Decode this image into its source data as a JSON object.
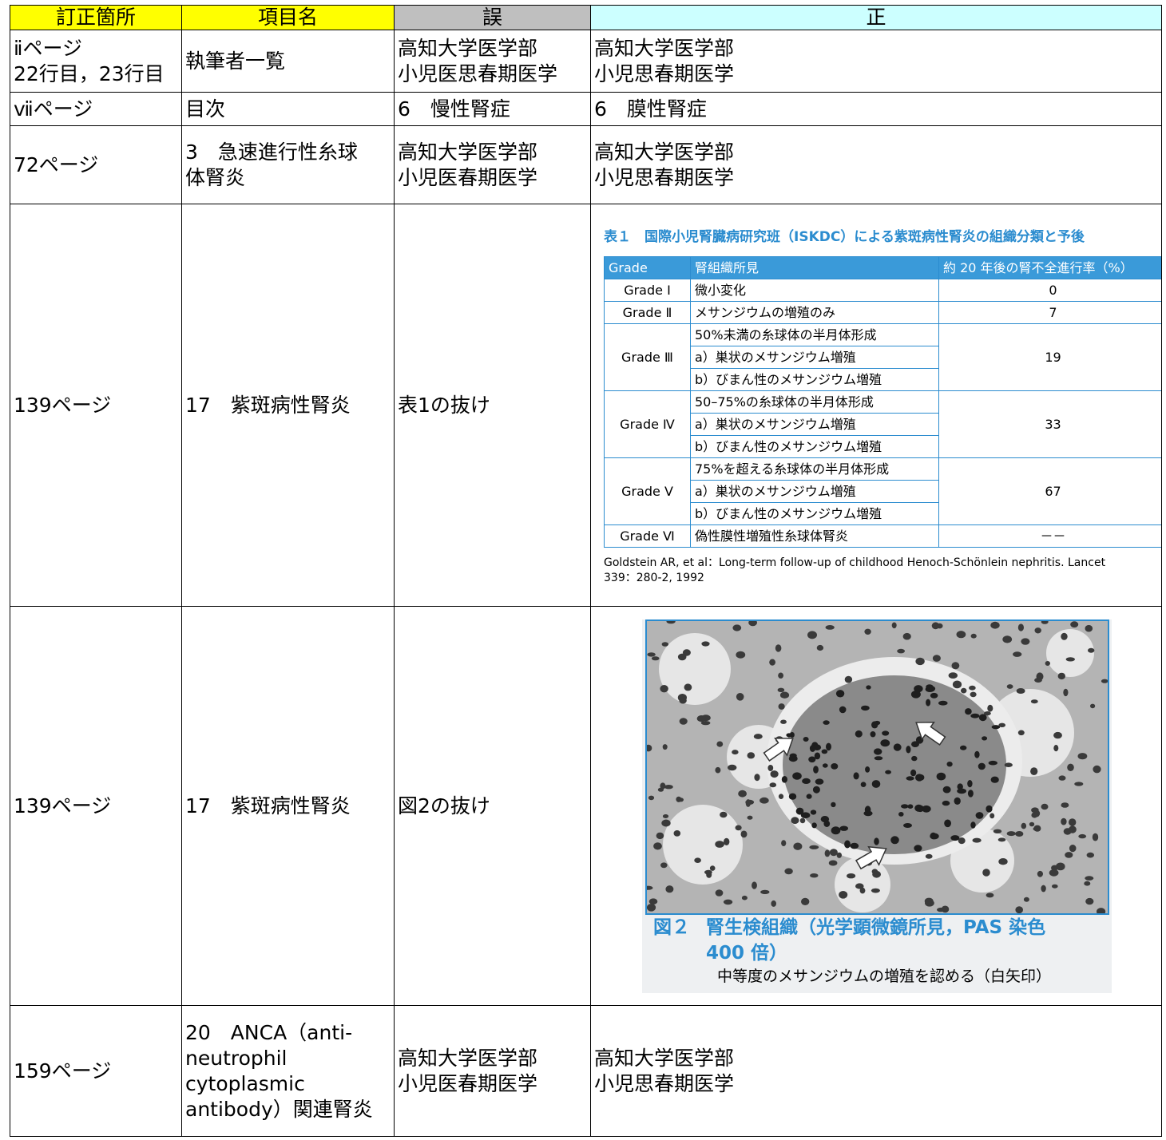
{
  "table": {
    "header": [
      "訂正箇所",
      "項目名",
      "誤",
      "正"
    ],
    "rows": [
      [
        "ⅱページ\n22行目，23行目",
        "執筆者一覧",
        "高知大学医学部\n小児医思春期医学",
        "高知大学医学部\n小児思春期医学"
      ],
      [
        "ⅶページ",
        "目次",
        "6　慢性腎症",
        "6　膜性腎症"
      ],
      [
        "72ページ",
        "3　急速進行性糸球\n体腎炎",
        "高知大学医学部\n小児医春期医学",
        "高知大学医学部\n小児思春期医学"
      ],
      [
        "139ページ",
        "17　紫斑病性腎炎",
        "表1の抜け",
        {
          "title": "表１　国際小児腎臓病研究班（ISKDC）による紫斑病性腎炎の組織分類と予後",
          "header": [
            "Grade",
            "腎組織所見",
            "約 20 年後の腎不全進行率（%）"
          ],
          "grades": [
            {
              "grade": "Grade Ⅰ",
              "findings": [
                "微小変化"
              ],
              "rate": "0"
            },
            {
              "grade": "Grade Ⅱ",
              "findings": [
                "メサンジウムの増殖のみ"
              ],
              "rate": "7"
            },
            {
              "grade": "Grade Ⅲ",
              "findings": [
                "50%未満の糸球体の半月体形成",
                "a）巣状のメサンジウム増殖",
                "b）びまん性のメサンジウム増殖"
              ],
              "rate": "19"
            },
            {
              "grade": "Grade Ⅳ",
              "findings": [
                "50–75%の糸球体の半月体形成",
                "a）巣状のメサンジウム増殖",
                "b）びまん性のメサンジウム増殖"
              ],
              "rate": "33"
            },
            {
              "grade": "Grade Ⅴ",
              "findings": [
                "75%を超える糸球体の半月体形成",
                "a）巣状のメサンジウム増殖",
                "b）びまん性のメサンジウム増殖"
              ],
              "rate": "67"
            },
            {
              "grade": "Grade Ⅵ",
              "findings": [
                "偽性膜性増殖性糸球体腎炎"
              ],
              "rate": "－－"
            }
          ],
          "note": "Goldstein AR, et al：Long-term follow-up of childhood Henoch-Schönlein nephritis. Lancet 339：280-2, 1992"
        }
      ],
      [
        "139ページ",
        "17　紫斑病性腎炎",
        "図2の抜け",
        {
          "label": "図２",
          "caption": "腎生検組織（光学顕微鏡所見，PAS 染色\n400 倍）",
          "description": "中等度のメサンジウムの増殖を認める（白矢印）"
        }
      ],
      [
        "159ページ",
        "20　ANCA（anti-\nneutrophil\ncytoplasmic\nantibody）関連腎炎",
        "高知大学医学部\n小児医春期医学",
        "高知大学医学部\n小児思春期医学"
      ]
    ]
  }
}
